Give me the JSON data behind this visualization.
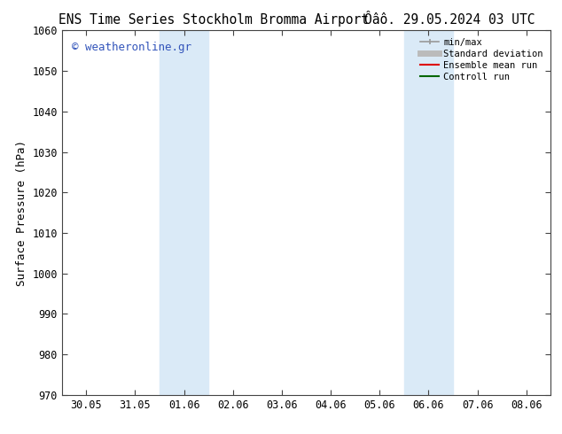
{
  "title_left": "ENS Time Series Stockholm Bromma Airport",
  "title_right": "Ôâô. 29.05.2024 03 UTC",
  "ylabel": "Surface Pressure (hPa)",
  "ylim": [
    970,
    1060
  ],
  "yticks": [
    970,
    980,
    990,
    1000,
    1010,
    1020,
    1030,
    1040,
    1050,
    1060
  ],
  "x_tick_labels": [
    "30.05",
    "31.05",
    "01.06",
    "02.06",
    "03.06",
    "04.06",
    "05.06",
    "06.06",
    "07.06",
    "08.06"
  ],
  "watermark": "© weatheronline.gr",
  "shaded_regions": [
    {
      "xmin": 2.0,
      "xmax": 3.0,
      "color": "#daeaf7"
    },
    {
      "xmin": 7.0,
      "xmax": 8.0,
      "color": "#daeaf7"
    }
  ],
  "legend_items": [
    {
      "label": "min/max",
      "color": "#999999",
      "lw": 1.2,
      "style": "line_with_caps"
    },
    {
      "label": "Standard deviation",
      "color": "#bbbbbb",
      "lw": 5,
      "style": "line"
    },
    {
      "label": "Ensemble mean run",
      "color": "#dd0000",
      "lw": 1.5,
      "style": "line"
    },
    {
      "label": "Controll run",
      "color": "#006600",
      "lw": 1.5,
      "style": "line"
    }
  ],
  "bg_color": "#ffffff",
  "plot_bg_color": "#ffffff",
  "title_fontsize": 10.5,
  "axis_label_fontsize": 9,
  "tick_fontsize": 8.5,
  "watermark_color": "#3355bb"
}
